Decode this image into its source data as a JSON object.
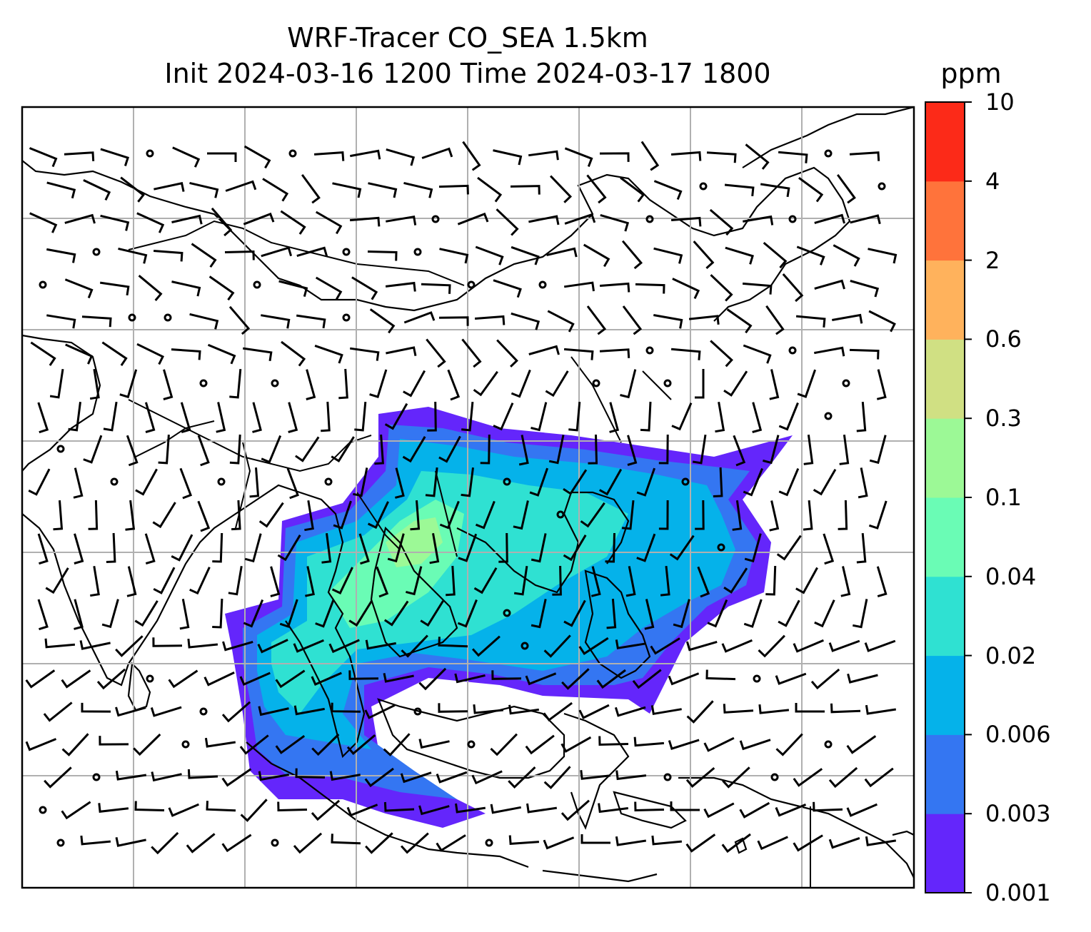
{
  "title_line1": "WRF-Tracer CO_SEA 1.5km",
  "title_line2": "Init 2024-03-16 1200 Time 2024-03-17 1800",
  "colorbar": {
    "unit": "ppm",
    "levels": [
      "0.001",
      "0.003",
      "0.006",
      "0.02",
      "0.04",
      "0.1",
      "0.3",
      "0.6",
      "2",
      "4",
      "10"
    ],
    "colors": [
      "#6426fb",
      "#3476f2",
      "#05b2ea",
      "#2fe1d2",
      "#6afcb5",
      "#9cf996",
      "#d0e083",
      "#ffb25c",
      "#ff733b",
      "#fc2a18"
    ]
  },
  "map": {
    "gridlines": true,
    "layers": [
      "coastlines",
      "country-borders",
      "wind-barbs",
      "co-tracer-concentration"
    ]
  }
}
